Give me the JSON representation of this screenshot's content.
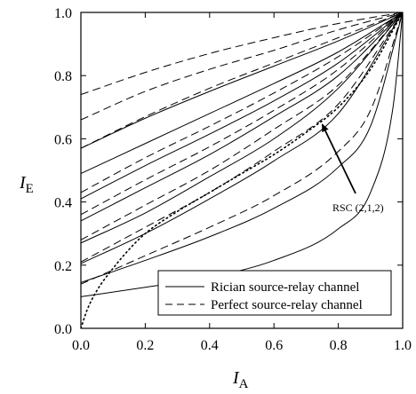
{
  "chart_data": {
    "type": "line",
    "xlabel": "I",
    "xlabel_sub": "A",
    "ylabel": "I",
    "ylabel_sub": "E",
    "xlim": [
      0.0,
      1.0
    ],
    "ylim": [
      0.0,
      1.0
    ],
    "x_ticks": [
      "0.0",
      "0.2",
      "0.4",
      "0.6",
      "0.8",
      "1.0"
    ],
    "y_ticks": [
      "0.0",
      "0.2",
      "0.4",
      "0.6",
      "0.8",
      "1.0"
    ],
    "grid": false,
    "legend_position": "bottom-right",
    "legend": [
      {
        "label": "Rician source-relay channel",
        "style": "solid"
      },
      {
        "label": "Perfect source-relay channel",
        "style": "dashed"
      }
    ],
    "annotation": {
      "text": "RSC (2,1,2)",
      "points_to": [
        0.75,
        0.64
      ]
    },
    "series": [
      {
        "style": "solid",
        "x": [
          0,
          0.2,
          0.4,
          0.6,
          0.8,
          0.9,
          0.97,
          1.0
        ],
        "y": [
          0.1,
          0.13,
          0.162,
          0.215,
          0.315,
          0.43,
          0.7,
          1.0
        ]
      },
      {
        "style": "solid",
        "x": [
          0,
          0.2,
          0.4,
          0.6,
          0.8,
          0.9,
          1.0
        ],
        "y": [
          0.145,
          0.215,
          0.29,
          0.38,
          0.51,
          0.64,
          1.0
        ]
      },
      {
        "style": "solid",
        "x": [
          0,
          0.2,
          0.4,
          0.6,
          0.8,
          1.0
        ],
        "y": [
          0.205,
          0.3,
          0.41,
          0.53,
          0.68,
          1.0
        ]
      },
      {
        "style": "solid",
        "x": [
          0,
          0.2,
          0.4,
          0.6,
          0.8,
          1.0
        ],
        "y": [
          0.27,
          0.365,
          0.48,
          0.6,
          0.76,
          1.0
        ]
      },
      {
        "style": "solid",
        "x": [
          0,
          0.2,
          0.4,
          0.6,
          0.8,
          1.0
        ],
        "y": [
          0.34,
          0.445,
          0.55,
          0.67,
          0.8,
          1.0
        ]
      },
      {
        "style": "solid",
        "x": [
          0,
          0.2,
          0.4,
          0.6,
          0.8,
          1.0
        ],
        "y": [
          0.41,
          0.515,
          0.615,
          0.72,
          0.84,
          1.0
        ]
      },
      {
        "style": "solid",
        "x": [
          0,
          0.2,
          0.4,
          0.6,
          0.8,
          1.0
        ],
        "y": [
          0.49,
          0.585,
          0.68,
          0.775,
          0.875,
          1.0
        ]
      },
      {
        "style": "solid",
        "x": [
          0,
          0.2,
          0.4,
          0.6,
          0.8,
          1.0
        ],
        "y": [
          0.57,
          0.665,
          0.75,
          0.83,
          0.91,
          1.0
        ]
      },
      {
        "style": "dashed",
        "x": [
          0,
          0.2,
          0.4,
          0.6,
          0.8,
          0.9,
          1.0
        ],
        "y": [
          0.14,
          0.23,
          0.32,
          0.42,
          0.56,
          0.69,
          1.0
        ]
      },
      {
        "style": "dashed",
        "x": [
          0,
          0.2,
          0.4,
          0.6,
          0.8,
          1.0
        ],
        "y": [
          0.21,
          0.32,
          0.43,
          0.56,
          0.71,
          1.0
        ]
      },
      {
        "style": "dashed",
        "x": [
          0,
          0.2,
          0.4,
          0.6,
          0.8,
          1.0
        ],
        "y": [
          0.28,
          0.39,
          0.5,
          0.63,
          0.77,
          1.0
        ]
      },
      {
        "style": "dashed",
        "x": [
          0,
          0.2,
          0.4,
          0.6,
          0.8,
          1.0
        ],
        "y": [
          0.36,
          0.47,
          0.575,
          0.69,
          0.82,
          1.0
        ]
      },
      {
        "style": "dashed",
        "x": [
          0,
          0.2,
          0.4,
          0.6,
          0.8,
          1.0
        ],
        "y": [
          0.43,
          0.54,
          0.64,
          0.745,
          0.86,
          1.0
        ]
      },
      {
        "style": "dashed",
        "x": [
          0,
          0.2,
          0.4,
          0.6,
          0.8,
          1.0
        ],
        "y": [
          0.57,
          0.67,
          0.76,
          0.84,
          0.92,
          1.0
        ]
      },
      {
        "style": "dashed",
        "x": [
          0,
          0.2,
          0.4,
          0.6,
          0.8,
          1.0
        ],
        "y": [
          0.66,
          0.75,
          0.82,
          0.88,
          0.945,
          1.0
        ]
      },
      {
        "style": "dashed",
        "x": [
          0,
          0.2,
          0.4,
          0.6,
          0.8,
          1.0
        ],
        "y": [
          0.74,
          0.81,
          0.87,
          0.92,
          0.965,
          1.0
        ]
      },
      {
        "style": "dotted",
        "x": [
          0,
          0.02,
          0.05,
          0.1,
          0.15,
          0.2,
          0.3,
          0.4,
          0.5,
          0.6,
          0.7,
          0.8,
          0.9,
          1.0
        ],
        "y": [
          0,
          0.06,
          0.12,
          0.19,
          0.25,
          0.3,
          0.37,
          0.43,
          0.49,
          0.55,
          0.62,
          0.7,
          0.82,
          1.0
        ]
      }
    ]
  }
}
